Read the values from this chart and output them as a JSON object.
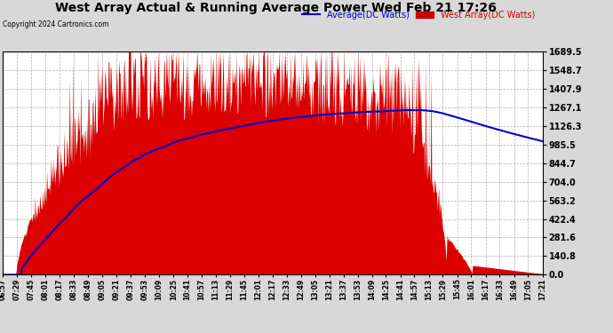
{
  "title": "West Array Actual & Running Average Power Wed Feb 21 17:26",
  "copyright": "Copyright 2024 Cartronics.com",
  "legend_avg": "Average(DC Watts)",
  "legend_west": "West Array(DC Watts)",
  "ylabel_values": [
    0.0,
    140.8,
    281.6,
    422.4,
    563.2,
    704.0,
    844.7,
    985.5,
    1126.3,
    1267.1,
    1407.9,
    1548.7,
    1689.5
  ],
  "ymax": 1689.5,
  "ymin": 0.0,
  "bg_color": "#d8d8d8",
  "plot_bg_color": "#ffffff",
  "bar_color": "#dd0000",
  "avg_line_color": "#0000cc",
  "title_color": "#000000",
  "copyright_color": "#000000",
  "legend_avg_color": "#0000cc",
  "legend_west_color": "#cc0000",
  "grid_color": "#999999",
  "x_tick_labels": [
    "06:57",
    "07:29",
    "07:45",
    "08:01",
    "08:17",
    "08:33",
    "08:49",
    "09:05",
    "09:21",
    "09:37",
    "09:53",
    "10:09",
    "10:25",
    "10:41",
    "10:57",
    "11:13",
    "11:29",
    "11:45",
    "12:01",
    "12:17",
    "12:33",
    "12:49",
    "13:05",
    "13:21",
    "13:37",
    "13:53",
    "14:09",
    "14:25",
    "14:41",
    "14:57",
    "15:13",
    "15:29",
    "15:45",
    "16:01",
    "16:17",
    "16:33",
    "16:49",
    "17:05",
    "17:21"
  ],
  "n_points": 780
}
